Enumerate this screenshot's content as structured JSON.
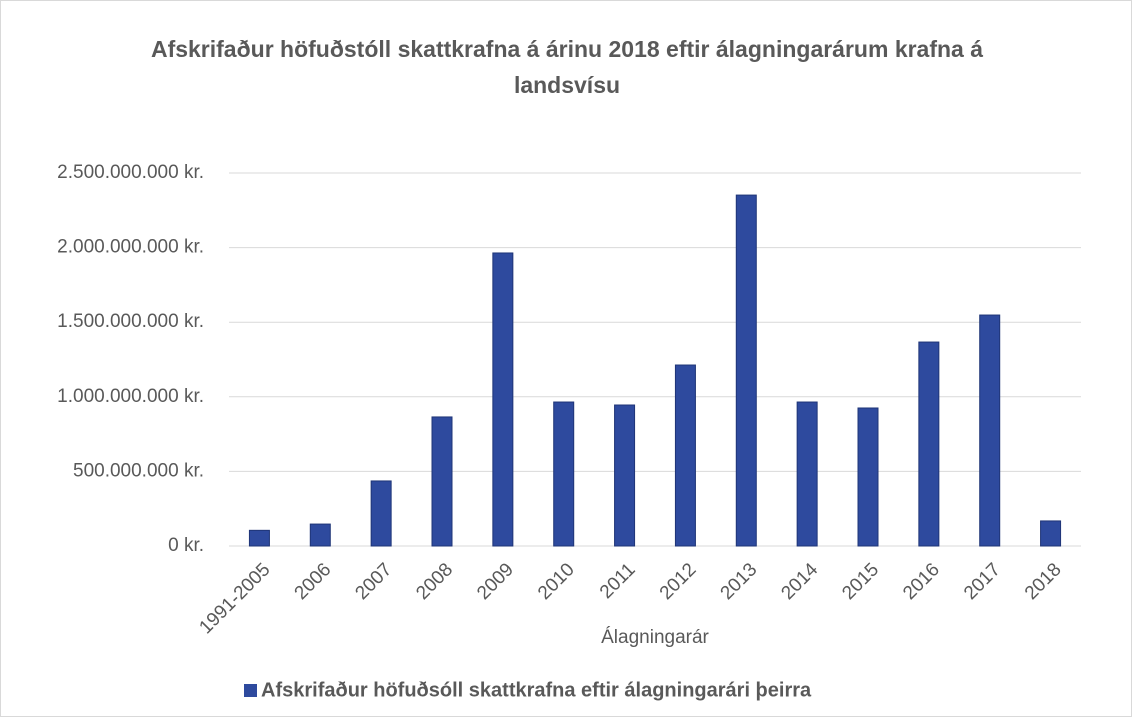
{
  "chart_data": {
    "type": "bar",
    "title": "Afskrifaður höfuðstóll skattkrafna á árinu 2018 eftir álagningarárum krafna á landsvísu",
    "x_label": "Álagningarár",
    "categories": [
      "1991-2005",
      "2006",
      "2007",
      "2008",
      "2009",
      "2010",
      "2011",
      "2012",
      "2013",
      "2014",
      "2015",
      "2016",
      "2017",
      "2018"
    ],
    "series": [
      {
        "name": "Afskrifaður höfuðsóll skattkrafna eftir álagningarári þeirra",
        "color": "#2e4a9e",
        "values": [
          105000000,
          147000000,
          436000000,
          865000000,
          1964000000,
          965000000,
          945000000,
          1213000000,
          2352000000,
          965000000,
          925000000,
          1367000000,
          1548000000,
          168000000
        ]
      }
    ],
    "ylim": [
      0,
      2500000000
    ],
    "yticks": [
      {
        "value": 0,
        "label": "0 kr."
      },
      {
        "value": 500000000,
        "label": "500.000.000 kr."
      },
      {
        "value": 1000000000,
        "label": "1.000.000.000 kr."
      },
      {
        "value": 1500000000,
        "label": "1.500.000.000 kr."
      },
      {
        "value": 2000000000,
        "label": "2.000.000.000 kr."
      },
      {
        "value": 2500000000,
        "label": "2.500.000.000 kr."
      }
    ],
    "grid": true,
    "legend": "bottom"
  }
}
